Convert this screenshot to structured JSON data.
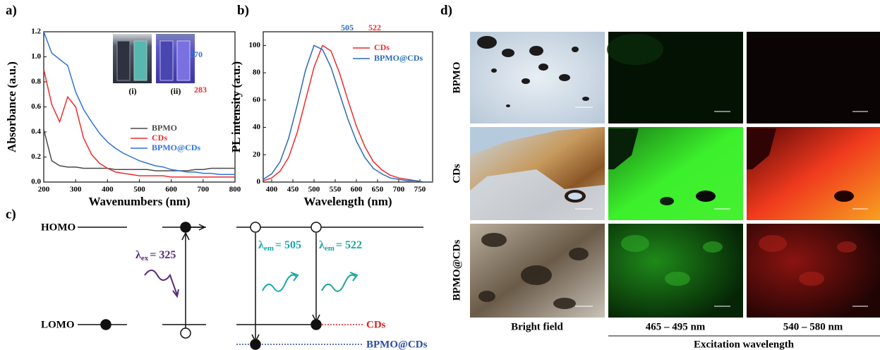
{
  "panel_labels": [
    "a)",
    "b)",
    "c)",
    "d)"
  ],
  "chart_data": [
    {
      "type": "line",
      "xlabel": "Wavenumbers (nm)",
      "ylabel": "Absorbance (a.u.)",
      "xlim": [
        200,
        800
      ],
      "ylim": [
        0,
        1.2
      ],
      "xticks": [
        200,
        300,
        400,
        500,
        600,
        700,
        800
      ],
      "yticks": [
        {
          "value": 0,
          "label": "0.0"
        },
        0.2,
        0.4,
        0.6,
        0.8,
        {
          "value": 1,
          "label": "1.0"
        },
        1.2
      ],
      "x": [
        200,
        225,
        250,
        275,
        300,
        325,
        350,
        375,
        400,
        425,
        450,
        475,
        500,
        525,
        550,
        575,
        600,
        625,
        650,
        675,
        700,
        725,
        750,
        775,
        800
      ],
      "series": [
        {
          "name": "BPMO",
          "color": "#4a4a4a",
          "values": [
            0.42,
            0.17,
            0.13,
            0.12,
            0.12,
            0.11,
            0.11,
            0.11,
            0.11,
            0.1,
            0.1,
            0.1,
            0.1,
            0.1,
            0.09,
            0.09,
            0.09,
            0.09,
            0.09,
            0.1,
            0.1,
            0.11,
            0.11,
            0.11,
            0.11
          ]
        },
        {
          "name": "CDs",
          "color": "#ee2b2b",
          "values": [
            0.9,
            0.62,
            0.48,
            0.68,
            0.6,
            0.35,
            0.22,
            0.15,
            0.11,
            0.08,
            0.07,
            0.06,
            0.05,
            0.05,
            0.05,
            0.05,
            0.04,
            0.04,
            0.04,
            0.04,
            0.04,
            0.04,
            0.04,
            0.04,
            0.04
          ]
        },
        {
          "name": "BPMO@CDs",
          "color": "#2f74d9",
          "values": [
            1.2,
            1.03,
            0.98,
            0.93,
            0.72,
            0.58,
            0.48,
            0.39,
            0.32,
            0.27,
            0.23,
            0.2,
            0.17,
            0.15,
            0.13,
            0.12,
            0.1,
            0.09,
            0.08,
            0.08,
            0.07,
            0.07,
            0.06,
            0.06,
            0.06
          ]
        }
      ],
      "annotations": [
        {
          "text": "270",
          "color": "#2f74d9"
        },
        {
          "text": "283",
          "color": "#ee2b2b"
        }
      ],
      "inset_labels": [
        "(i)",
        "(ii)"
      ]
    },
    {
      "type": "line",
      "xlabel": "Wavelength (nm)",
      "ylabel": "PL intensity (a.u.)",
      "xlim": [
        380,
        780
      ],
      "ylim": [
        0,
        110
      ],
      "xticks": [
        400,
        450,
        500,
        550,
        600,
        650,
        700,
        750
      ],
      "yticks": [
        0,
        20,
        40,
        60,
        80,
        100
      ],
      "x": [
        380,
        400,
        420,
        440,
        460,
        480,
        500,
        520,
        540,
        560,
        580,
        600,
        620,
        640,
        660,
        680,
        700,
        720,
        740,
        760,
        780
      ],
      "series": [
        {
          "name": "CDs",
          "color": "#ee2b2b",
          "values": [
            1,
            3,
            8,
            18,
            36,
            60,
            84,
            100,
            96,
            80,
            60,
            41,
            26,
            15,
            9,
            5,
            3,
            2,
            1,
            0,
            0
          ]
        },
        {
          "name": "BPMO@CDs",
          "color": "#2a6db5",
          "values": [
            2,
            6,
            15,
            32,
            56,
            82,
            100,
            97,
            84,
            65,
            46,
            30,
            18,
            10,
            6,
            3,
            2,
            1,
            1,
            0,
            0
          ]
        }
      ],
      "annotations": [
        {
          "text": "505",
          "color": "#2a6db5"
        },
        {
          "text": "522",
          "color": "#ee2b2b"
        }
      ]
    }
  ],
  "energy_diagram": {
    "levels": [
      "HOMO",
      "LOMO"
    ],
    "excitation": {
      "symbol": "λ",
      "sub": "ex",
      "text": "= 325"
    },
    "emissions": [
      {
        "symbol": "λ",
        "sub": "em",
        "text": "= 505"
      },
      {
        "symbol": "λ",
        "sub": "em",
        "text": "= 522"
      }
    ],
    "legend": [
      "CDs",
      "BPMO@CDs"
    ]
  },
  "micrographs": {
    "rows": [
      "BPMO",
      "CDs",
      "BPMO@CDs"
    ],
    "columns": [
      "Bright field",
      "465 – 495 nm",
      "540 – 580 nm"
    ],
    "axis_label": "Excitation wavelength"
  }
}
